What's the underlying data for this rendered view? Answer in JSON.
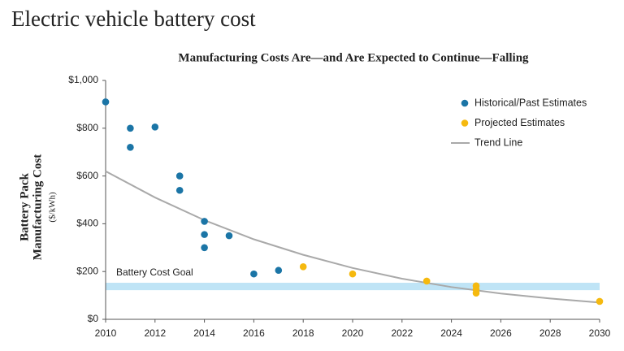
{
  "header": {
    "title": "Electric vehicle battery cost"
  },
  "chart_data": {
    "type": "scatter",
    "title": "Manufacturing Costs Are—and Are Expected to Continue—Falling",
    "y_label": [
      "Battery Pack",
      "Manufacturing Cost"
    ],
    "y_unit": "($/kWh)",
    "xlim": [
      2010,
      2030
    ],
    "xticks": [
      2010,
      2012,
      2014,
      2016,
      2018,
      2020,
      2022,
      2024,
      2026,
      2028,
      2030
    ],
    "ylim": [
      0,
      1000
    ],
    "yticks": [
      {
        "value": 0,
        "label": "$0"
      },
      {
        "value": 200,
        "label": "$200"
      },
      {
        "value": 400,
        "label": "$400"
      },
      {
        "value": 600,
        "label": "$600"
      },
      {
        "value": 800,
        "label": "$800"
      },
      {
        "value": 1000,
        "label": "$1,000"
      }
    ],
    "grid": false,
    "legend": "top-right",
    "goal": {
      "label": "Battery Cost Goal",
      "range": [
        122,
        153
      ],
      "color": "#bfe4f6"
    },
    "series": [
      {
        "name": "Historical/Past Estimates",
        "mode": "markers",
        "color": "#1b75a6",
        "x": [
          2010,
          2011,
          2011,
          2012,
          2013,
          2013,
          2014,
          2014,
          2014,
          2015,
          2016,
          2017
        ],
        "values": [
          910,
          800,
          720,
          805,
          600,
          540,
          410,
          355,
          300,
          350,
          190,
          205
        ]
      },
      {
        "name": "Projected Estimates",
        "mode": "markers",
        "color": "#f5b90f",
        "x": [
          2018,
          2020,
          2023,
          2025,
          2025,
          2025,
          2030
        ],
        "values": [
          220,
          190,
          160,
          140,
          125,
          110,
          75
        ]
      },
      {
        "name": "Trend Line",
        "mode": "line",
        "color": "#a9a9a9",
        "x": [
          2010,
          2012,
          2014,
          2016,
          2018,
          2020,
          2022,
          2024,
          2026,
          2028,
          2030
        ],
        "values": [
          620,
          510,
          415,
          335,
          270,
          215,
          170,
          135,
          108,
          87,
          70
        ]
      }
    ]
  }
}
